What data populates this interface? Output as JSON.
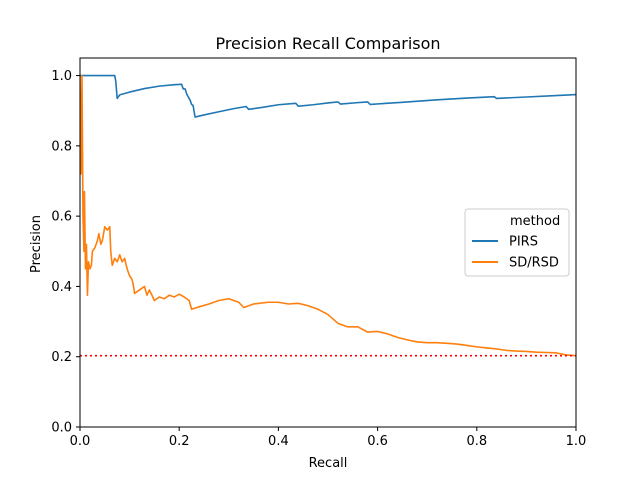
{
  "chart_data": {
    "type": "line",
    "title": "Precision Recall Comparison",
    "xlabel": "Recall",
    "ylabel": "Precision",
    "xlim": [
      0,
      1
    ],
    "ylim": [
      0,
      1.05
    ],
    "xticks": [
      "0.0",
      "0.2",
      "0.4",
      "0.6",
      "0.8",
      "1.0"
    ],
    "yticks": [
      "0.0",
      "0.2",
      "0.4",
      "0.6",
      "0.8",
      "1.0"
    ],
    "grid": false,
    "legend": {
      "title": "method",
      "placement": "center-right",
      "entries": [
        "PIRS",
        "SD/RSD"
      ]
    },
    "baseline": {
      "y": 0.203,
      "color": "#ff0000",
      "style": "dotted"
    },
    "series": [
      {
        "name": "PIRS",
        "color": "#1f77b4",
        "points": [
          [
            0.0,
            1.0
          ],
          [
            0.07,
            1.0
          ],
          [
            0.072,
            0.985
          ],
          [
            0.075,
            0.935
          ],
          [
            0.08,
            0.945
          ],
          [
            0.1,
            0.953
          ],
          [
            0.13,
            0.963
          ],
          [
            0.16,
            0.97
          ],
          [
            0.19,
            0.974
          ],
          [
            0.205,
            0.975
          ],
          [
            0.208,
            0.962
          ],
          [
            0.212,
            0.962
          ],
          [
            0.215,
            0.948
          ],
          [
            0.218,
            0.94
          ],
          [
            0.222,
            0.93
          ],
          [
            0.225,
            0.918
          ],
          [
            0.228,
            0.915
          ],
          [
            0.23,
            0.898
          ],
          [
            0.232,
            0.882
          ],
          [
            0.25,
            0.888
          ],
          [
            0.28,
            0.897
          ],
          [
            0.31,
            0.906
          ],
          [
            0.335,
            0.912
          ],
          [
            0.34,
            0.904
          ],
          [
            0.37,
            0.91
          ],
          [
            0.4,
            0.917
          ],
          [
            0.435,
            0.921
          ],
          [
            0.44,
            0.913
          ],
          [
            0.47,
            0.917
          ],
          [
            0.5,
            0.922
          ],
          [
            0.52,
            0.925
          ],
          [
            0.525,
            0.919
          ],
          [
            0.56,
            0.923
          ],
          [
            0.58,
            0.925
          ],
          [
            0.585,
            0.918
          ],
          [
            0.65,
            0.924
          ],
          [
            0.72,
            0.931
          ],
          [
            0.78,
            0.936
          ],
          [
            0.835,
            0.94
          ],
          [
            0.84,
            0.935
          ],
          [
            0.9,
            0.939
          ],
          [
            0.96,
            0.943
          ],
          [
            1.0,
            0.946
          ]
        ]
      },
      {
        "name": "SD/RSD",
        "color": "#ff7f0e",
        "points": [
          [
            0.0,
            1.0
          ],
          [
            0.002,
            0.72
          ],
          [
            0.004,
            1.0
          ],
          [
            0.006,
            0.6
          ],
          [
            0.008,
            0.5
          ],
          [
            0.009,
            0.67
          ],
          [
            0.011,
            0.45
          ],
          [
            0.013,
            0.52
          ],
          [
            0.015,
            0.375
          ],
          [
            0.017,
            0.47
          ],
          [
            0.02,
            0.45
          ],
          [
            0.023,
            0.46
          ],
          [
            0.025,
            0.5
          ],
          [
            0.03,
            0.51
          ],
          [
            0.035,
            0.53
          ],
          [
            0.038,
            0.55
          ],
          [
            0.042,
            0.52
          ],
          [
            0.045,
            0.53
          ],
          [
            0.05,
            0.57
          ],
          [
            0.055,
            0.56
          ],
          [
            0.06,
            0.57
          ],
          [
            0.062,
            0.5
          ],
          [
            0.065,
            0.46
          ],
          [
            0.07,
            0.48
          ],
          [
            0.075,
            0.47
          ],
          [
            0.08,
            0.49
          ],
          [
            0.085,
            0.47
          ],
          [
            0.09,
            0.48
          ],
          [
            0.095,
            0.45
          ],
          [
            0.1,
            0.43
          ],
          [
            0.105,
            0.42
          ],
          [
            0.108,
            0.4
          ],
          [
            0.11,
            0.38
          ],
          [
            0.12,
            0.39
          ],
          [
            0.13,
            0.4
          ],
          [
            0.135,
            0.375
          ],
          [
            0.14,
            0.39
          ],
          [
            0.15,
            0.36
          ],
          [
            0.16,
            0.37
          ],
          [
            0.17,
            0.365
          ],
          [
            0.18,
            0.375
          ],
          [
            0.19,
            0.37
          ],
          [
            0.2,
            0.378
          ],
          [
            0.21,
            0.37
          ],
          [
            0.22,
            0.36
          ],
          [
            0.225,
            0.335
          ],
          [
            0.24,
            0.342
          ],
          [
            0.26,
            0.35
          ],
          [
            0.28,
            0.36
          ],
          [
            0.3,
            0.365
          ],
          [
            0.32,
            0.355
          ],
          [
            0.33,
            0.34
          ],
          [
            0.35,
            0.35
          ],
          [
            0.38,
            0.355
          ],
          [
            0.4,
            0.355
          ],
          [
            0.42,
            0.35
          ],
          [
            0.44,
            0.352
          ],
          [
            0.46,
            0.345
          ],
          [
            0.48,
            0.335
          ],
          [
            0.5,
            0.32
          ],
          [
            0.52,
            0.295
          ],
          [
            0.54,
            0.285
          ],
          [
            0.56,
            0.285
          ],
          [
            0.58,
            0.27
          ],
          [
            0.6,
            0.272
          ],
          [
            0.62,
            0.265
          ],
          [
            0.64,
            0.255
          ],
          [
            0.66,
            0.248
          ],
          [
            0.68,
            0.242
          ],
          [
            0.7,
            0.24
          ],
          [
            0.72,
            0.24
          ],
          [
            0.74,
            0.238
          ],
          [
            0.76,
            0.236
          ],
          [
            0.78,
            0.232
          ],
          [
            0.8,
            0.228
          ],
          [
            0.82,
            0.225
          ],
          [
            0.84,
            0.222
          ],
          [
            0.86,
            0.218
          ],
          [
            0.88,
            0.216
          ],
          [
            0.9,
            0.215
          ],
          [
            0.92,
            0.213
          ],
          [
            0.94,
            0.212
          ],
          [
            0.96,
            0.211
          ],
          [
            0.98,
            0.205
          ],
          [
            1.0,
            0.203
          ]
        ]
      }
    ]
  }
}
